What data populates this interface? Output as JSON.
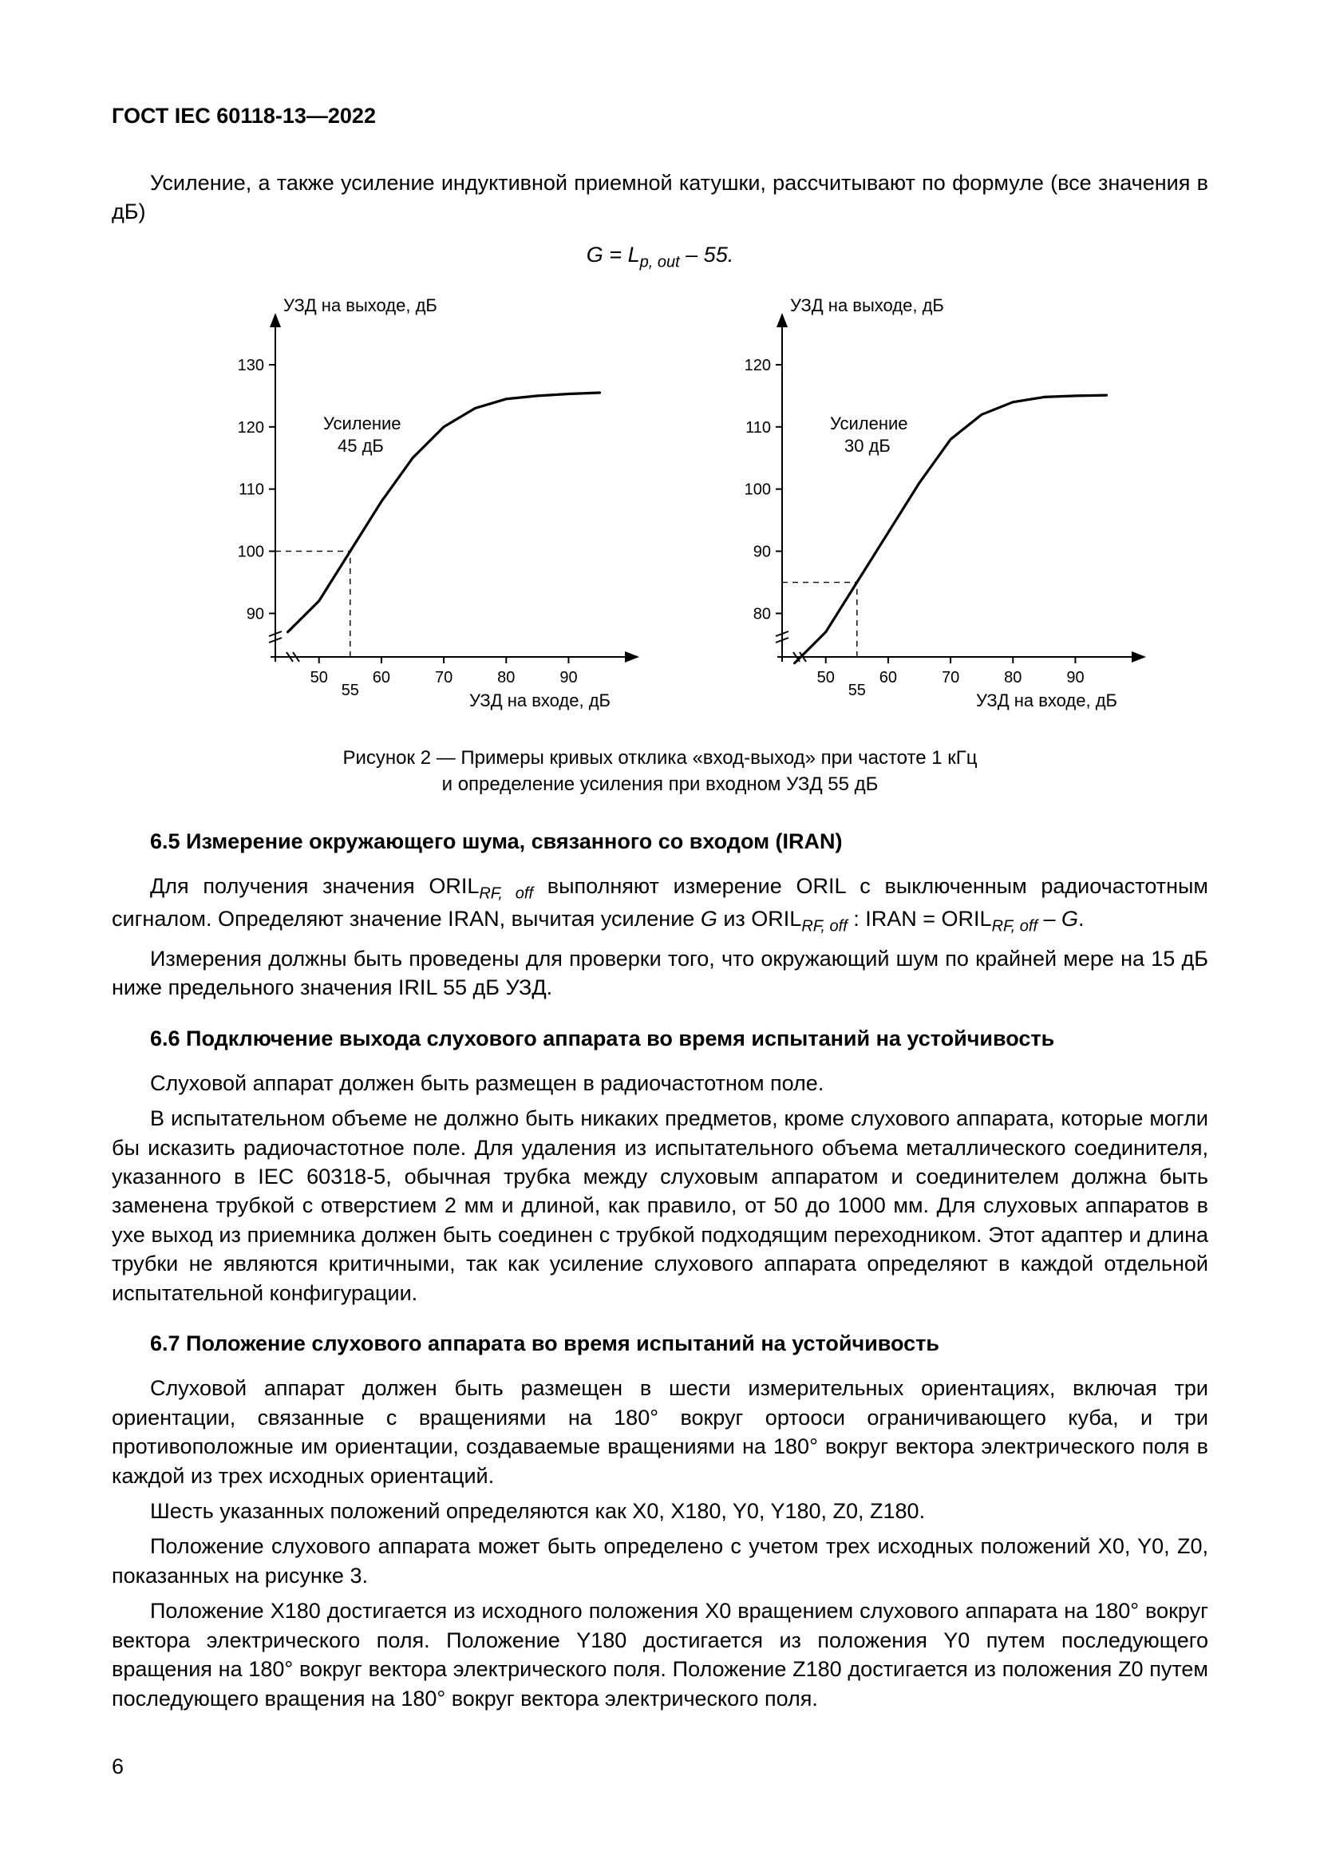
{
  "doc_header": "ГОСТ IEC 60118-13—2022",
  "intro_para": "Усиление, а также усиление индуктивной приемной катушки, рассчитывают по формуле (все значения в дБ)",
  "formula": {
    "lhs": "G",
    "eq": " = ",
    "rhs1": "L",
    "rhs_sub": "p, out",
    "tail": " – 55."
  },
  "figure": {
    "left_chart": {
      "y_title": "УЗД на выходе, дБ",
      "x_title": "УЗД на входе, дБ",
      "y_ticks": [
        90,
        100,
        110,
        120,
        130
      ],
      "x_ticks": [
        50,
        60,
        70,
        80,
        90
      ],
      "x_sub_tick": 55,
      "annot_line1": "Усиление",
      "annot_line2": "45 дБ",
      "curve": [
        {
          "x": 45,
          "y": 87
        },
        {
          "x": 50,
          "y": 92
        },
        {
          "x": 55,
          "y": 100
        },
        {
          "x": 60,
          "y": 108
        },
        {
          "x": 65,
          "y": 115
        },
        {
          "x": 70,
          "y": 120
        },
        {
          "x": 75,
          "y": 123
        },
        {
          "x": 80,
          "y": 124.5
        },
        {
          "x": 85,
          "y": 125
        },
        {
          "x": 90,
          "y": 125.3
        },
        {
          "x": 95,
          "y": 125.5
        }
      ],
      "dash_from_x": 55,
      "dash_to_y": 100,
      "ylim": [
        83,
        135
      ],
      "xlim": [
        43,
        98
      ],
      "axis_color": "#000000",
      "curve_color": "#000000",
      "curve_width": 3.2,
      "dash_color": "#000000",
      "dash_width": 1.4
    },
    "right_chart": {
      "y_title": "УЗД на выходе, дБ",
      "x_title": "УЗД на входе, дБ",
      "y_ticks": [
        80,
        90,
        100,
        110,
        120
      ],
      "x_ticks": [
        50,
        60,
        70,
        80,
        90
      ],
      "x_sub_tick": 55,
      "annot_line1": "Усиление",
      "annot_line2": "30 дБ",
      "curve": [
        {
          "x": 45,
          "y": 72
        },
        {
          "x": 50,
          "y": 77
        },
        {
          "x": 55,
          "y": 85
        },
        {
          "x": 60,
          "y": 93
        },
        {
          "x": 65,
          "y": 101
        },
        {
          "x": 70,
          "y": 108
        },
        {
          "x": 75,
          "y": 112
        },
        {
          "x": 80,
          "y": 114
        },
        {
          "x": 85,
          "y": 114.8
        },
        {
          "x": 90,
          "y": 115
        },
        {
          "x": 95,
          "y": 115.1
        }
      ],
      "dash_from_x": 55,
      "dash_to_y": 85,
      "ylim": [
        73,
        125
      ],
      "xlim": [
        43,
        98
      ],
      "axis_color": "#000000",
      "curve_color": "#000000",
      "curve_width": 3.2,
      "dash_color": "#000000",
      "dash_width": 1.4
    },
    "caption_l1": "Рисунок 2 — Примеры кривых отклика «вход-выход» при частоте 1 кГц",
    "caption_l2": "и определение усиления при входном УЗД 55 дБ"
  },
  "s65": {
    "title": "6.5 Измерение окружающего шума, связанного со входом (IRAN)",
    "p1a": "Для получения значения ORIL",
    "p1sub1": "RF, off",
    "p1b": " выполняют измерение ORIL с выключенным радиочастотным сигналом. Определяют значение IRAN, вычитая усиление ",
    "p1g": "G",
    "p1c": " из ORIL",
    "p1sub2": "RF, off",
    "p1d": " : IRAN = ORIL",
    "p1sub3": "RF, off",
    "p1e": " – ",
    "p1g2": "G",
    "p1f": ".",
    "p2": "Измерения должны быть проведены для проверки того, что окружающий шум по крайней мере на 15 дБ ниже предельного значения IRIL 55 дБ УЗД."
  },
  "s66": {
    "title": "6.6 Подключение выхода слухового аппарата во время испытаний на устойчивость",
    "p1": "Слуховой аппарат должен быть размещен в радиочастотном поле.",
    "p2": "В испытательном объеме не должно быть никаких предметов, кроме слухового аппарата, которые могли бы исказить радиочастотное поле. Для удаления из испытательного объема металлического соединителя, указанного в IEC 60318-5, обычная трубка между слуховым аппаратом и соединителем должна быть заменена трубкой с отверстием 2 мм и длиной, как правило, от 50 до 1000 мм. Для слуховых аппаратов в ухе выход из приемника должен быть соединен с трубкой подходящим переходником. Этот адаптер и длина трубки не являются критичными, так как усиление слухового аппарата определяют в каждой отдельной испытательной конфигурации."
  },
  "s67": {
    "title": "6.7 Положение слухового аппарата во время испытаний на устойчивость",
    "p1": "Слуховой аппарат должен быть размещен в шести измерительных ориентациях, включая три ориентации, связанные с вращениями на 180° вокруг ортооси ограничивающего куба, и три противоположные им ориентации, создаваемые вращениями на 180° вокруг вектора электрического поля в каждой из трех исходных ориентаций.",
    "p2": "Шесть указанных положений определяются как X0, X180, Y0, Y180, Z0, Z180.",
    "p3": "Положение слухового аппарата может быть определено с учетом трех исходных положений X0, Y0, Z0, показанных на рисунке 3.",
    "p4": "Положение X180 достигается из исходного положения X0 вращением слухового аппарата на 180° вокруг вектора электрического поля. Положение Y180 достигается из положения Y0 путем последующего вращения на 180° вокруг вектора электрического поля. Положение Z180 достигается из положения Z0 путем последующего вращения на 180° вокруг вектора электрического поля."
  },
  "page_number": "6"
}
